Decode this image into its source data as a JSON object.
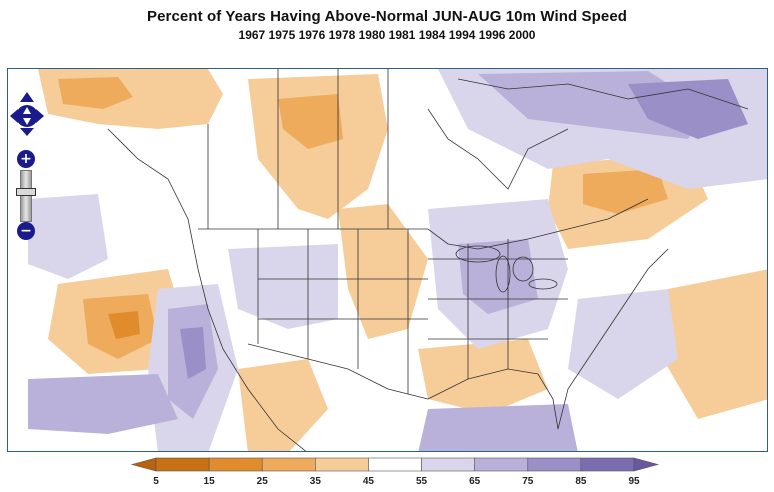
{
  "header": {
    "title": "Percent of Years Having Above-Normal JUN-AUG 10m Wind Speed",
    "subtitle": "1967 1975 1976 1978 1980 1981 1984 1994 1996 2000"
  },
  "map_controls": {
    "zoom_in_label": "+",
    "zoom_out_label": "−"
  },
  "legend": {
    "tick_labels": [
      "5",
      "15",
      "25",
      "35",
      "45",
      "55",
      "65",
      "75",
      "85",
      "95"
    ],
    "bin_colors": [
      "#c87114",
      "#e08c2c",
      "#eeab5c",
      "#f6cc98",
      "#ffffff",
      "#d9d5ea",
      "#b9b1d9",
      "#9a8fc6",
      "#7c6db0"
    ],
    "low_arrow_color": "#b8620d",
    "high_arrow_color": "#6a579f"
  },
  "colors": {
    "frame": "#2c5f8a",
    "control": "#1a1a8c",
    "borders": "#333333"
  }
}
